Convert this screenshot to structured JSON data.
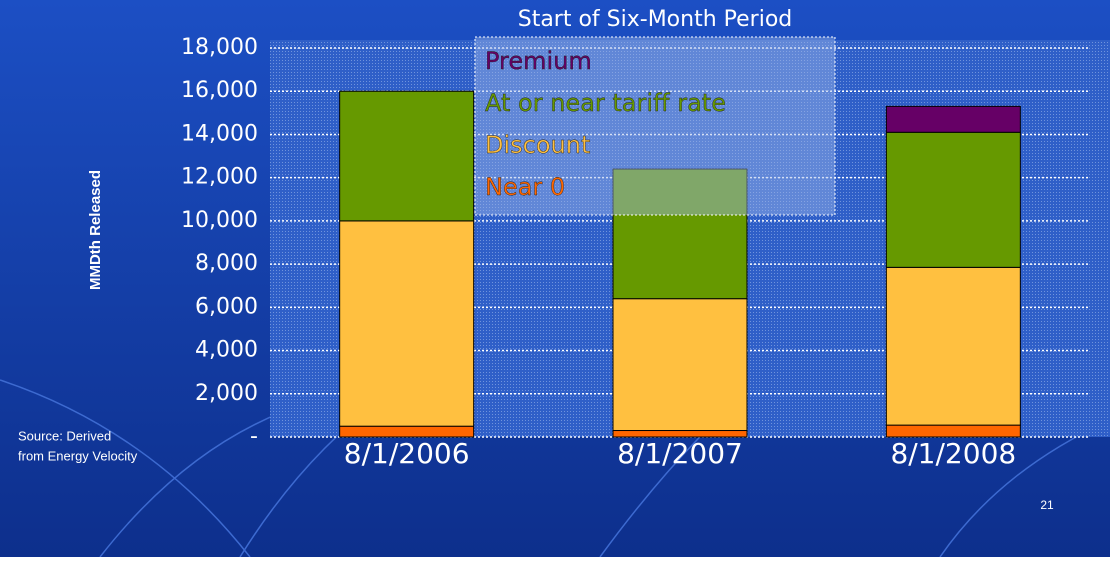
{
  "chart_data": {
    "type": "bar",
    "stacked": true,
    "title": "Start of Six-Month Period",
    "y_label": "MMDth Released",
    "source": [
      "Source: Derived",
      "from Energy Velocity"
    ],
    "page_number": "21",
    "categories": [
      "8/1/2006",
      "8/1/2007",
      "8/1/2008"
    ],
    "series": [
      {
        "name": "Near 0",
        "color": "#ff6600",
        "values": [
          500,
          300,
          550
        ]
      },
      {
        "name": "Discount",
        "color": "#ffc040",
        "values": [
          9500,
          6100,
          7300
        ]
      },
      {
        "name": "At or near tariff rate",
        "color": "#669900",
        "values": [
          6000,
          6000,
          6250
        ]
      },
      {
        "name": "Premium",
        "color": "#660066",
        "values": [
          0,
          0,
          1200
        ]
      }
    ],
    "ylim": [
      0,
      18000
    ],
    "yticks": [
      {
        "value": 0,
        "label": "-"
      },
      {
        "value": 2000,
        "label": "2,000"
      },
      {
        "value": 4000,
        "label": "4,000"
      },
      {
        "value": 6000,
        "label": "6,000"
      },
      {
        "value": 8000,
        "label": "8,000"
      },
      {
        "value": 10000,
        "label": "10,000"
      },
      {
        "value": 12000,
        "label": "12,000"
      },
      {
        "value": 14000,
        "label": "14,000"
      },
      {
        "value": 16000,
        "label": "16,000"
      },
      {
        "value": 18000,
        "label": "18,000"
      }
    ],
    "grid": true
  }
}
